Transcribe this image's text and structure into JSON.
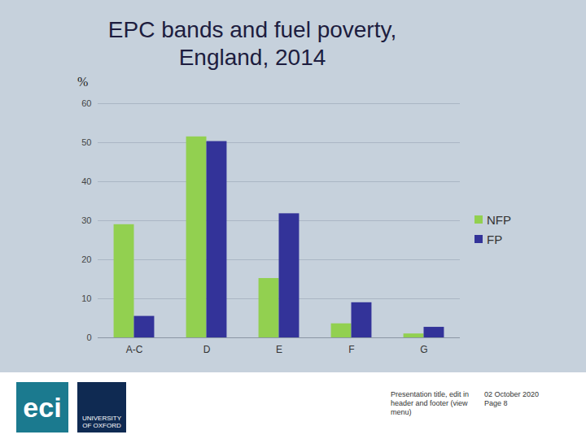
{
  "chart_data": {
    "type": "bar",
    "title": "EPC bands and fuel poverty, England, 2014",
    "y_label": "%",
    "categories": [
      "A-C",
      "D",
      "E",
      "F",
      "G"
    ],
    "series": [
      {
        "name": "NFP",
        "color": "#92d050",
        "values": [
          29,
          51.5,
          15.2,
          3.6,
          1
        ]
      },
      {
        "name": "FP",
        "color": "#333399",
        "values": [
          5.5,
          50.3,
          31.8,
          9,
          2.7
        ]
      }
    ],
    "ylim": [
      0,
      60
    ],
    "yticks": [
      0,
      10,
      20,
      30,
      40,
      50,
      60
    ],
    "grid": true,
    "legend": "right"
  },
  "footer": {
    "logos": [
      "eci",
      "UNIVERSITY OF OXFORD"
    ],
    "note": "Presentation title, edit in header and footer (view menu)",
    "date": "02 October 2020",
    "page": "Page 8"
  }
}
